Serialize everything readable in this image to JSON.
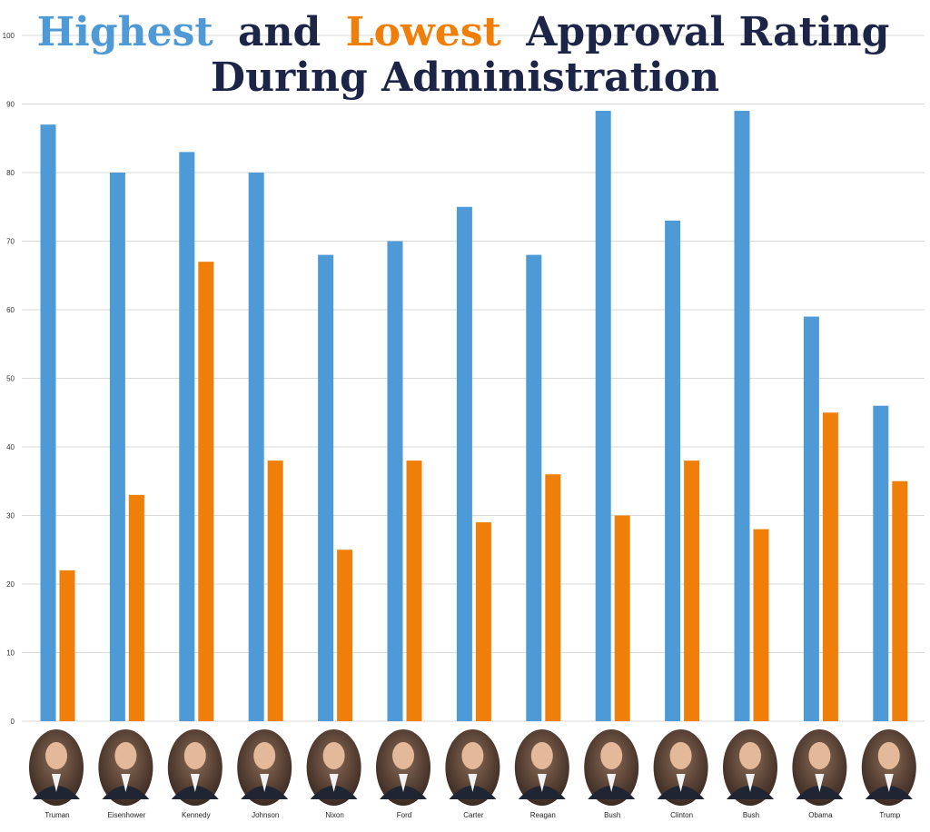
{
  "title": {
    "word_high": "Highest",
    "word_and": "and",
    "word_low": "Lowest",
    "word_rest": "Approval Rating",
    "line2": "During Administration"
  },
  "colors": {
    "highest": "#4E9AD6",
    "lowest": "#F07F0A",
    "title_dark": "#1C2547",
    "grid": "#D9D9D9"
  },
  "chart_data": {
    "type": "bar",
    "title": "Highest and Lowest Approval Rating During Administration",
    "xlabel": "",
    "ylabel": "",
    "ylim": [
      0,
      100
    ],
    "yticks": [
      0,
      10,
      20,
      30,
      40,
      50,
      60,
      70,
      80,
      90,
      100
    ],
    "grid": true,
    "categories": [
      "Truman",
      "Eisenhower",
      "Kennedy",
      "Johnson",
      "Nixon",
      "Ford",
      "Carter",
      "Reagan",
      "Bush",
      "Clinton",
      "Bush",
      "Obama",
      "Trump"
    ],
    "series": [
      {
        "name": "Highest",
        "values": [
          87,
          80,
          83,
          80,
          68,
          70,
          75,
          68,
          89,
          73,
          89,
          59,
          46
        ]
      },
      {
        "name": "Lowest",
        "values": [
          22,
          33,
          67,
          38,
          25,
          38,
          29,
          36,
          30,
          38,
          28,
          45,
          35
        ]
      }
    ]
  }
}
